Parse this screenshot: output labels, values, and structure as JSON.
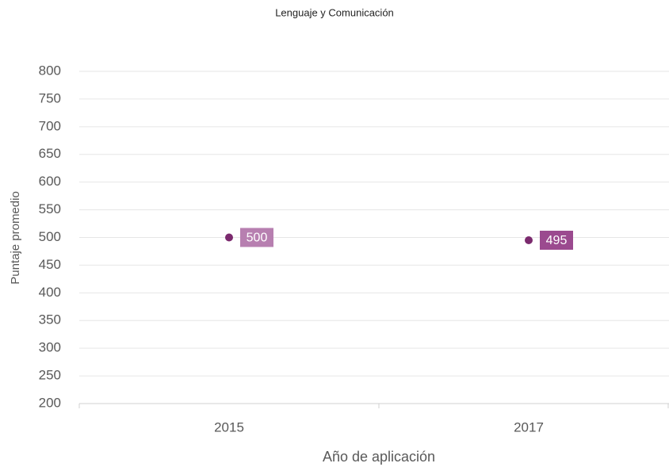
{
  "chart_data": {
    "type": "scatter",
    "title": "Lenguaje y Comunicación",
    "x_label": "Año de aplicación",
    "y_label": "Puntaje promedio",
    "categories": [
      "2015",
      "2017"
    ],
    "values": [
      500,
      495
    ],
    "color": "#7b2a6e",
    "label_colors": [
      "#b77fb0",
      "#9b4a8f"
    ],
    "ylim": [
      200,
      800
    ],
    "yticks": [
      200,
      250,
      300,
      350,
      400,
      450,
      500,
      550,
      600,
      650,
      700,
      750,
      800
    ],
    "grid": true
  }
}
